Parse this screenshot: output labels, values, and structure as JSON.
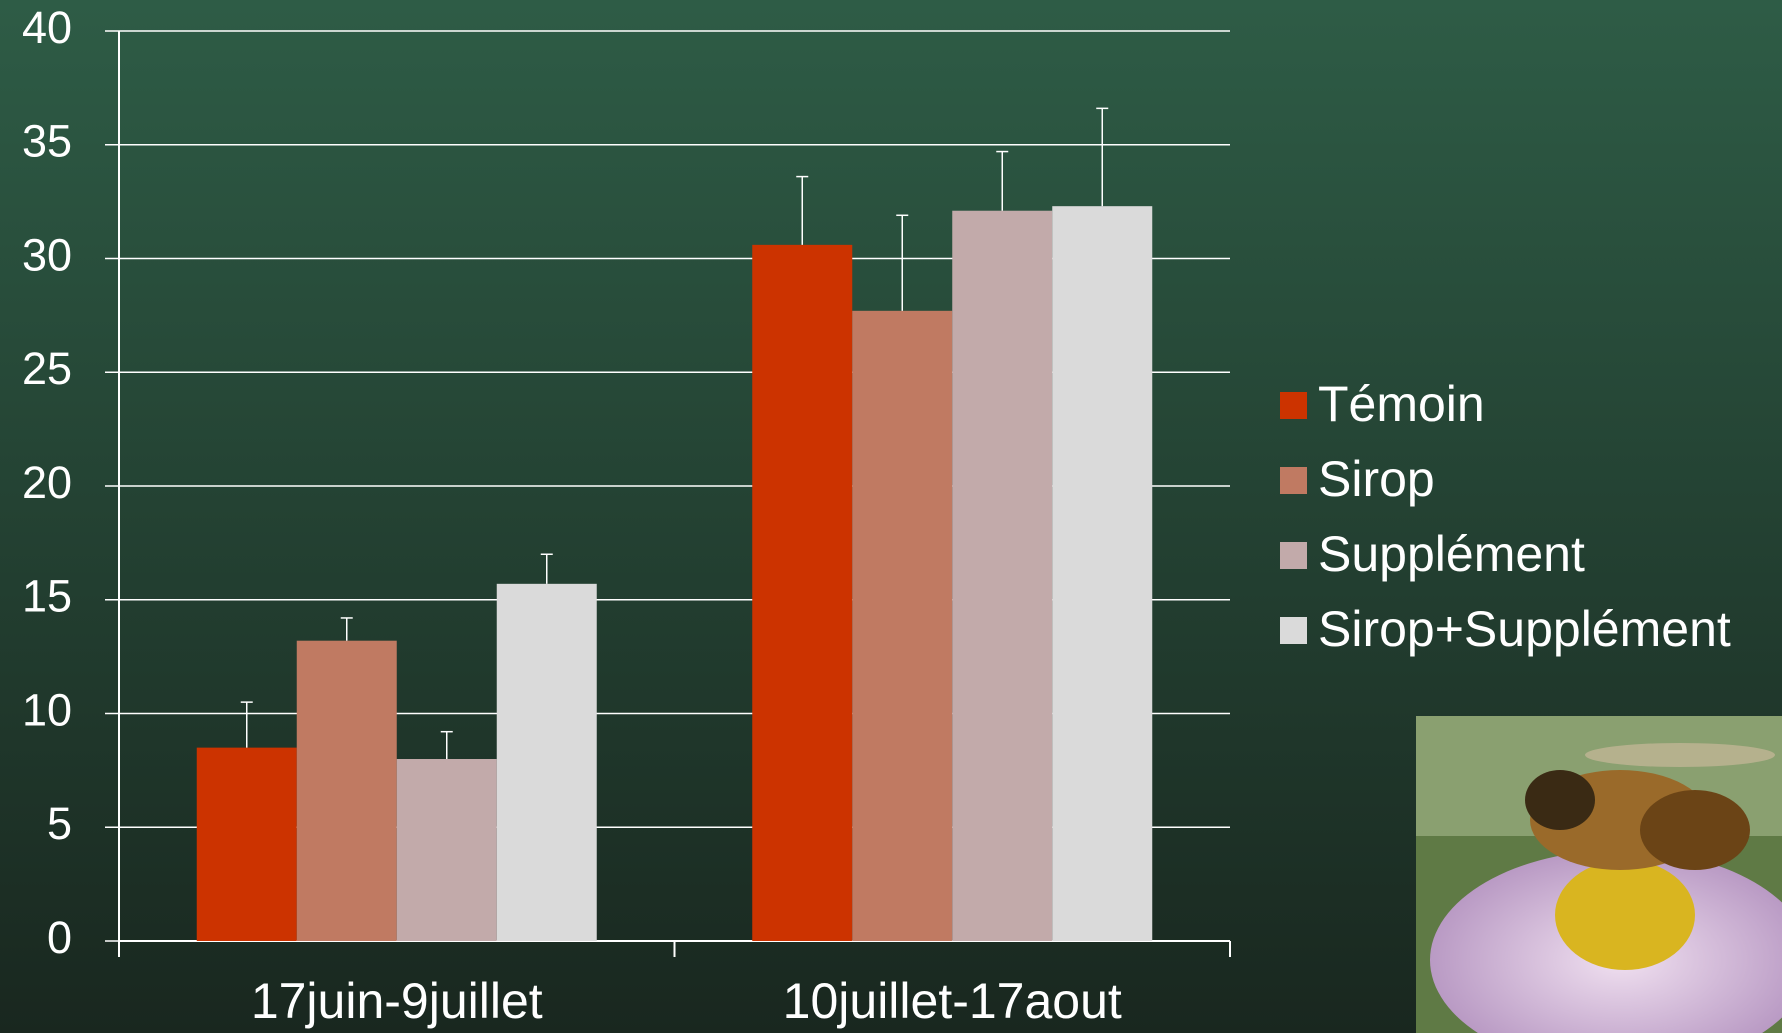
{
  "chart_data": {
    "type": "bar",
    "categories": [
      "17juin-9juillet",
      "10juillet-17aout"
    ],
    "series": [
      {
        "name": "Témoin",
        "color": "#cc3300",
        "values": [
          8.5,
          30.6
        ],
        "errors": [
          2.0,
          3.0
        ]
      },
      {
        "name": "Sirop",
        "color": "#c07a62",
        "values": [
          13.2,
          27.7
        ],
        "errors": [
          1.0,
          4.2
        ]
      },
      {
        "name": "Supplément",
        "color": "#c2aaaa",
        "values": [
          8.0,
          32.1
        ],
        "errors": [
          1.2,
          2.6
        ]
      },
      {
        "name": "Sirop+Supplément",
        "color": "#dadada",
        "values": [
          15.7,
          32.3
        ],
        "errors": [
          1.3,
          4.3
        ]
      }
    ],
    "ylim": [
      0,
      40
    ],
    "yticks": [
      0,
      5,
      10,
      15,
      20,
      25,
      30,
      35,
      40
    ],
    "grid": true,
    "legend": "right"
  }
}
